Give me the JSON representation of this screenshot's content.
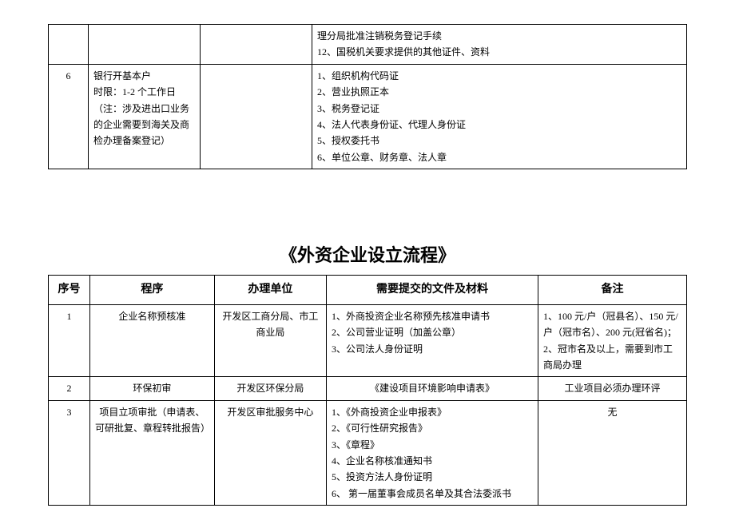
{
  "table1": {
    "rows": [
      {
        "seq": "",
        "proc": "",
        "unit": "",
        "docs": "理分局批准注销税务登记手续\n12、国税机关要求提供的其他证件、资料"
      },
      {
        "seq": "6",
        "proc": "银行开基本户\n时限：1-2 个工作日\n（注：涉及进出口业务的企业需要到海关及商检办理备案登记）",
        "unit": "",
        "docs": "1、组织机构代码证\n2、营业执照正本\n3、税务登记证\n4、法人代表身份证、代理人身份证\n5、授权委托书\n6、单位公章、财务章、法人章"
      }
    ]
  },
  "title2": "《外资企业设立流程》",
  "table2": {
    "headers": {
      "seq": "序号",
      "proc": "程序",
      "unit": "办理单位",
      "docs": "需要提交的文件及材料",
      "note": "备注"
    },
    "rows": [
      {
        "seq": "1",
        "proc": "企业名称预核准",
        "unit": "开发区工商分局、市工商业局",
        "docs": "1、外商投资企业名称预先核准申请书\n2、公司营业证明（加盖公章）\n3、公司法人身份证明",
        "note": "1、100 元/户（冠县名）、150 元/户（冠市名）、200 元(冠省名)；\n2、冠市名及以上，需要到市工商局办理"
      },
      {
        "seq": "2",
        "proc": "环保初审",
        "unit": "开发区环保分局",
        "docs": "《建设项目环境影响申请表》",
        "note": "工业项目必须办理环评"
      },
      {
        "seq": "3",
        "proc": "项目立项审批（申请表、可研批复、章程转批报告）",
        "unit": "开发区审批服务中心",
        "docs": "1、《外商投资企业申报表》\n2、《可行性研究报告》\n3、《章程》\n4、企业名称核准通知书\n5、投资方法人身份证明\n6、 第一届董事会成员名单及其合法委派书",
        "note": "无"
      }
    ]
  }
}
